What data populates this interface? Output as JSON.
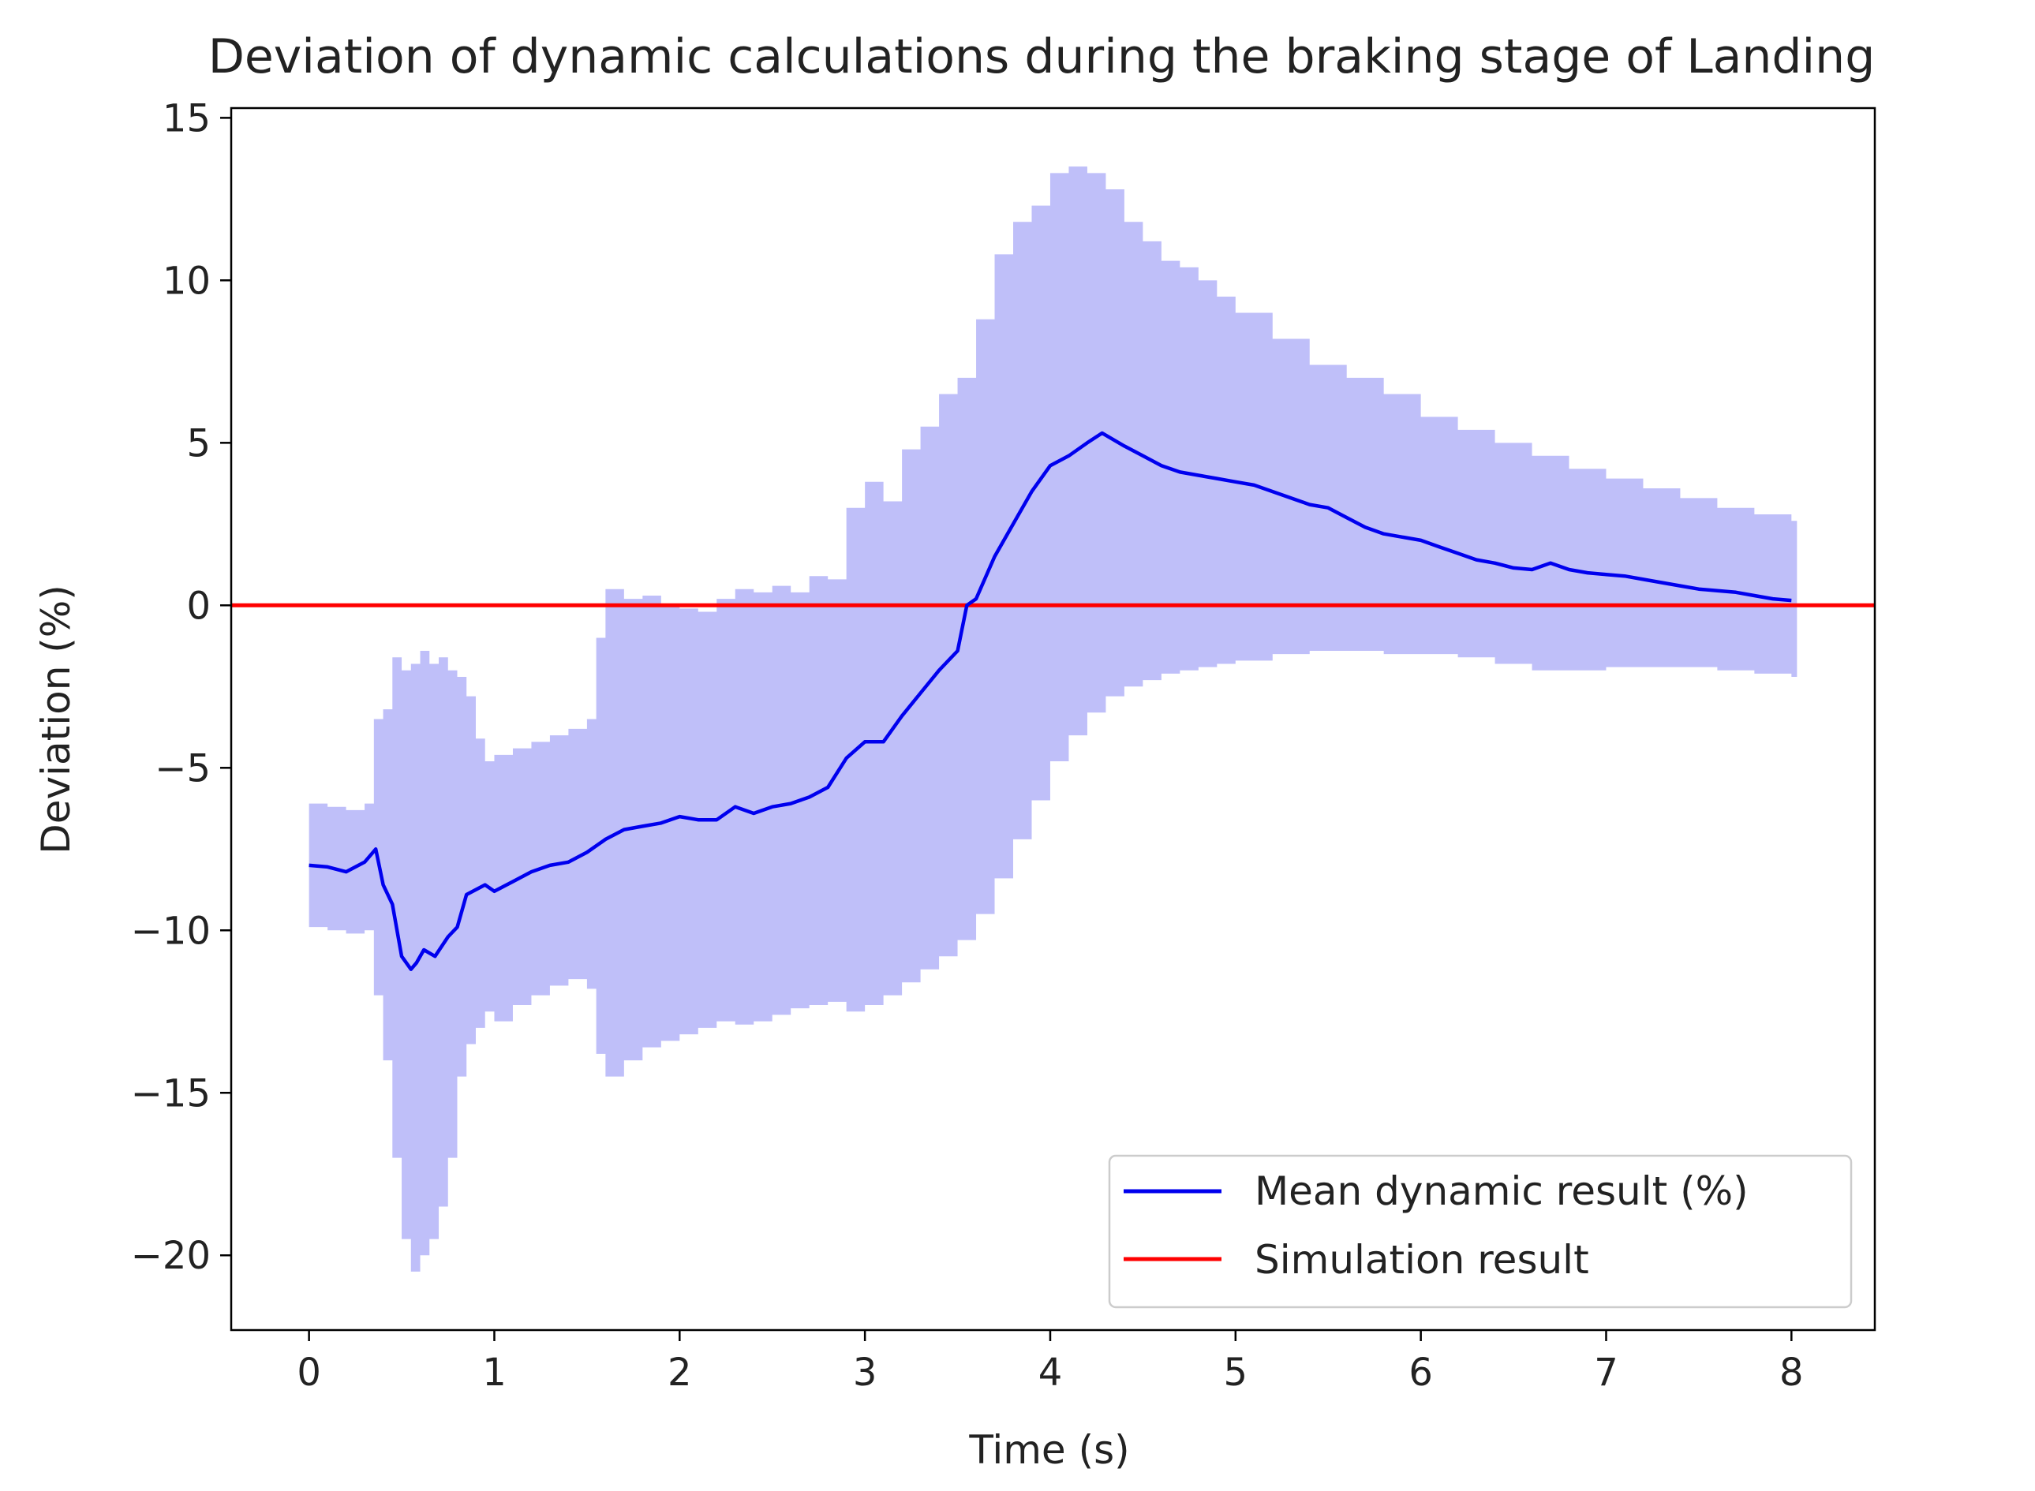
{
  "chart_data": {
    "type": "line",
    "title": "Deviation of dynamic calculations during the braking stage of Landing",
    "xlabel": "Time (s)",
    "ylabel": "Deviation (%)",
    "xlim": [
      -0.42,
      8.45
    ],
    "ylim": [
      -22.3,
      15.3
    ],
    "xticks": [
      0,
      1,
      2,
      3,
      4,
      5,
      6,
      7,
      8
    ],
    "yticks": [
      15,
      10,
      5,
      0,
      -5,
      -10,
      -15,
      -20
    ],
    "xtick_labels": [
      "0",
      "1",
      "2",
      "3",
      "4",
      "5",
      "6",
      "7",
      "8"
    ],
    "ytick_labels": [
      "15",
      "10",
      "5",
      "0",
      "−5",
      "−10",
      "−15",
      "−20"
    ],
    "grid": false,
    "legend_position": "lower-right",
    "series": [
      {
        "name": "Mean dynamic result (%)",
        "color": "#0000ee",
        "x": [
          0,
          0.1,
          0.2,
          0.3,
          0.36,
          0.4,
          0.45,
          0.5,
          0.55,
          0.58,
          0.62,
          0.68,
          0.75,
          0.8,
          0.85,
          0.95,
          1.0,
          1.1,
          1.2,
          1.3,
          1.4,
          1.5,
          1.6,
          1.7,
          1.8,
          1.9,
          2.0,
          2.1,
          2.2,
          2.3,
          2.4,
          2.5,
          2.6,
          2.7,
          2.8,
          2.9,
          3.0,
          3.1,
          3.2,
          3.3,
          3.4,
          3.5,
          3.55,
          3.6,
          3.7,
          3.8,
          3.9,
          4.0,
          4.1,
          4.2,
          4.28,
          4.4,
          4.5,
          4.6,
          4.7,
          4.8,
          4.9,
          5.0,
          5.1,
          5.2,
          5.3,
          5.4,
          5.5,
          5.6,
          5.7,
          5.8,
          5.9,
          6.0,
          6.1,
          6.2,
          6.3,
          6.4,
          6.5,
          6.6,
          6.7,
          6.8,
          6.9,
          7.0,
          7.1,
          7.2,
          7.3,
          7.4,
          7.5,
          7.6,
          7.7,
          7.8,
          7.9,
          8.0
        ],
        "values": [
          -8.0,
          -8.05,
          -8.2,
          -7.9,
          -7.5,
          -8.6,
          -9.2,
          -10.8,
          -11.2,
          -11.0,
          -10.6,
          -10.8,
          -10.2,
          -9.9,
          -8.9,
          -8.6,
          -8.8,
          -8.5,
          -8.2,
          -8.0,
          -7.9,
          -7.6,
          -7.2,
          -6.9,
          -6.8,
          -6.7,
          -6.5,
          -6.6,
          -6.6,
          -6.2,
          -6.4,
          -6.2,
          -6.1,
          -5.9,
          -5.6,
          -4.7,
          -4.2,
          -4.2,
          -3.4,
          -2.7,
          -2.0,
          -1.4,
          0.0,
          0.2,
          1.5,
          2.5,
          3.5,
          4.3,
          4.6,
          5.0,
          5.3,
          4.9,
          4.6,
          4.3,
          4.1,
          4.0,
          3.9,
          3.8,
          3.7,
          3.5,
          3.3,
          3.1,
          3.0,
          2.7,
          2.4,
          2.2,
          2.1,
          2.0,
          1.8,
          1.6,
          1.4,
          1.3,
          1.15,
          1.1,
          1.3,
          1.1,
          1.0,
          0.95,
          0.9,
          0.8,
          0.7,
          0.6,
          0.5,
          0.45,
          0.4,
          0.3,
          0.2,
          0.15
        ]
      },
      {
        "name": "Simulation result",
        "color": "#ff0000",
        "x": [
          -0.42,
          8.45
        ],
        "values": [
          0,
          0
        ]
      }
    ],
    "band": {
      "color": "#bfbff9",
      "x": [
        0,
        0.1,
        0.2,
        0.3,
        0.35,
        0.4,
        0.45,
        0.5,
        0.55,
        0.6,
        0.65,
        0.7,
        0.75,
        0.8,
        0.85,
        0.9,
        0.95,
        1.0,
        1.1,
        1.2,
        1.3,
        1.4,
        1.5,
        1.55,
        1.6,
        1.7,
        1.8,
        1.9,
        2.0,
        2.1,
        2.2,
        2.3,
        2.4,
        2.5,
        2.6,
        2.7,
        2.8,
        2.9,
        3.0,
        3.1,
        3.2,
        3.3,
        3.4,
        3.5,
        3.6,
        3.7,
        3.8,
        3.9,
        4.0,
        4.1,
        4.2,
        4.3,
        4.4,
        4.5,
        4.6,
        4.7,
        4.8,
        4.9,
        5.0,
        5.2,
        5.4,
        5.6,
        5.8,
        6.0,
        6.2,
        6.4,
        6.6,
        6.8,
        7.0,
        7.2,
        7.4,
        7.6,
        7.8,
        8.0
      ],
      "upper": [
        -6.1,
        -6.2,
        -6.3,
        -6.1,
        -3.5,
        -3.2,
        -1.6,
        -2.0,
        -1.8,
        -1.4,
        -1.8,
        -1.6,
        -2.0,
        -2.2,
        -2.8,
        -4.1,
        -4.8,
        -4.6,
        -4.4,
        -4.2,
        -4.0,
        -3.8,
        -3.5,
        -1.0,
        0.5,
        0.2,
        0.3,
        0.0,
        -0.1,
        -0.2,
        0.2,
        0.5,
        0.4,
        0.6,
        0.4,
        0.9,
        0.8,
        3.0,
        3.8,
        3.2,
        4.8,
        5.5,
        6.5,
        7.0,
        8.8,
        10.8,
        11.8,
        12.3,
        13.3,
        13.5,
        13.3,
        12.8,
        11.8,
        11.2,
        10.6,
        10.4,
        10.0,
        9.5,
        9.0,
        8.2,
        7.4,
        7.0,
        6.5,
        5.8,
        5.4,
        5.0,
        4.6,
        4.2,
        3.9,
        3.6,
        3.3,
        3.0,
        2.8,
        2.6
      ],
      "lower": [
        -9.9,
        -10.0,
        -10.1,
        -10.0,
        -12.0,
        -14.0,
        -17.0,
        -19.5,
        -20.5,
        -20.0,
        -19.5,
        -18.5,
        -17.0,
        -14.5,
        -13.5,
        -13.0,
        -12.5,
        -12.8,
        -12.3,
        -12.0,
        -11.7,
        -11.5,
        -11.8,
        -13.8,
        -14.5,
        -14.0,
        -13.6,
        -13.4,
        -13.2,
        -13.0,
        -12.8,
        -12.9,
        -12.8,
        -12.6,
        -12.4,
        -12.3,
        -12.2,
        -12.5,
        -12.3,
        -12.0,
        -11.6,
        -11.2,
        -10.8,
        -10.3,
        -9.5,
        -8.4,
        -7.2,
        -6.0,
        -4.8,
        -4.0,
        -3.3,
        -2.8,
        -2.5,
        -2.3,
        -2.1,
        -2.0,
        -1.9,
        -1.8,
        -1.7,
        -1.5,
        -1.4,
        -1.4,
        -1.5,
        -1.5,
        -1.6,
        -1.8,
        -2.0,
        -2.0,
        -1.9,
        -1.9,
        -1.9,
        -2.0,
        -2.1,
        -2.2
      ]
    }
  }
}
